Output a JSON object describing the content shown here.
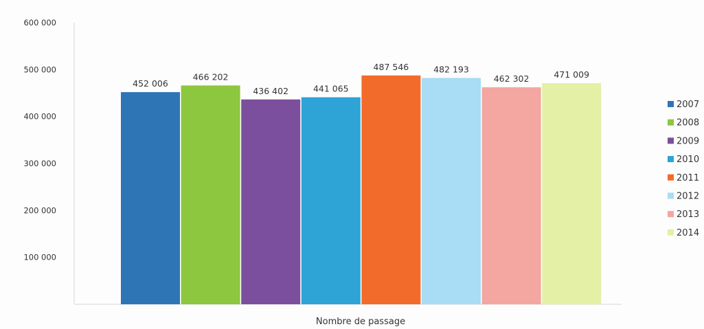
{
  "chart_data": {
    "type": "bar",
    "title": "",
    "xlabel": "Nombre de passage",
    "ylabel": "",
    "ylim": [
      0,
      600000
    ],
    "yticks": [
      {
        "value": 100000,
        "label": "100 000"
      },
      {
        "value": 200000,
        "label": "200 000"
      },
      {
        "value": 300000,
        "label": "300 000"
      },
      {
        "value": 400000,
        "label": "400 000"
      },
      {
        "value": 500000,
        "label": "500 000"
      },
      {
        "value": 600000,
        "label": "600 000"
      }
    ],
    "grid": false,
    "legend_position": "right",
    "series": [
      {
        "name": "2007",
        "value": 452006,
        "label": "452 006",
        "color": "#2e75b6"
      },
      {
        "name": "2008",
        "value": 466202,
        "label": "466 202",
        "color": "#8dc63f"
      },
      {
        "name": "2009",
        "value": 436402,
        "label": "436 402",
        "color": "#7b4f9d"
      },
      {
        "name": "2010",
        "value": 441065,
        "label": "441 065",
        "color": "#2ea3d6"
      },
      {
        "name": "2011",
        "value": 487546,
        "label": "487 546",
        "color": "#f26b2a"
      },
      {
        "name": "2012",
        "value": 482193,
        "label": "482 193",
        "color": "#a9dcf5"
      },
      {
        "name": "2013",
        "value": 462302,
        "label": "462 302",
        "color": "#f4a6a0"
      },
      {
        "name": "2014",
        "value": 471009,
        "label": "471 009",
        "color": "#e3f0a6"
      }
    ]
  }
}
